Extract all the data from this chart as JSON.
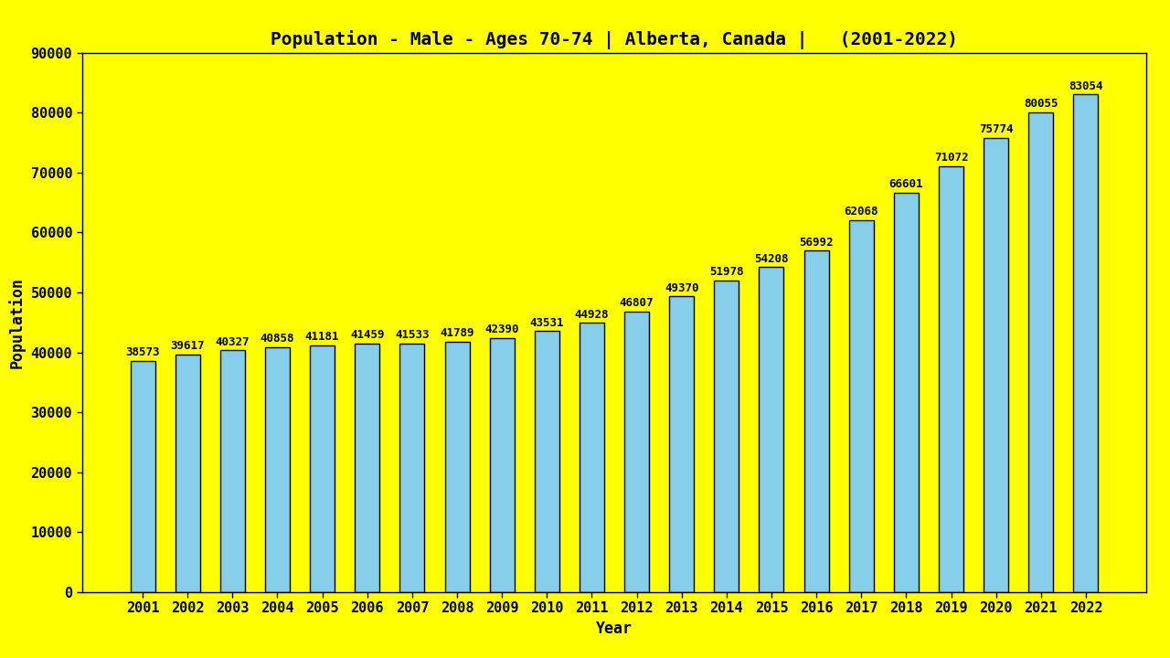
{
  "title": "Population - Male - Ages 70-74 | Alberta, Canada |   (2001-2022)",
  "xlabel": "Year",
  "ylabel": "Population",
  "background_color": "#FFFF00",
  "bar_color": "#87CEEB",
  "bar_edge_color": "#000000",
  "years": [
    2001,
    2002,
    2003,
    2004,
    2005,
    2006,
    2007,
    2008,
    2009,
    2010,
    2011,
    2012,
    2013,
    2014,
    2015,
    2016,
    2017,
    2018,
    2019,
    2020,
    2021,
    2022
  ],
  "values": [
    38573,
    39617,
    40327,
    40858,
    41181,
    41459,
    41533,
    41789,
    42390,
    43531,
    44928,
    46807,
    49370,
    51978,
    54208,
    56992,
    62068,
    66601,
    71072,
    75774,
    80055,
    83054
  ],
  "ylim": [
    0,
    90000
  ],
  "yticks": [
    0,
    10000,
    20000,
    30000,
    40000,
    50000,
    60000,
    70000,
    80000,
    90000
  ],
  "title_fontsize": 14,
  "axis_label_fontsize": 12,
  "tick_fontsize": 11,
  "annotation_fontsize": 9,
  "bar_width": 0.55
}
